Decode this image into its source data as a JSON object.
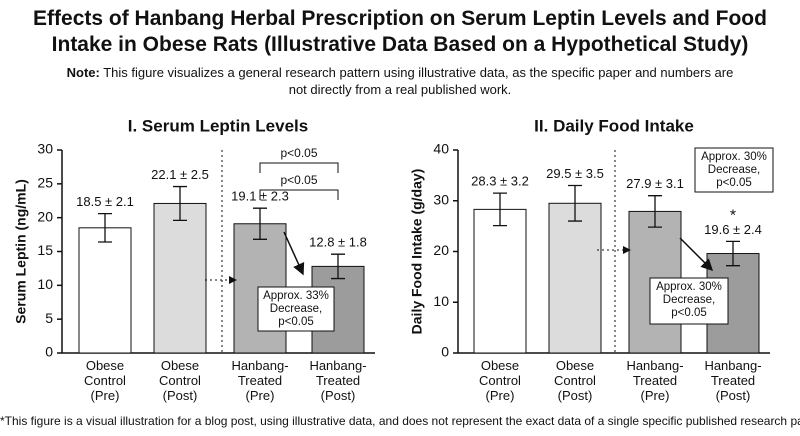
{
  "title": "Effects of Hanbang Herbal Prescription on Serum Leptin Levels and Food Intake in Obese Rats (Illustrative Data Based on a Hypothetical Study)",
  "note_label": "Note:",
  "note": "This figure visualizes a general research pattern using illustrative data, as the specific paper and numbers are not directly from a real published work.",
  "footnote": "*This figure is a visual illustration for a blog post, using illustrative data, and does not represent the exact data of a single specific published research paper.*",
  "chart_data": [
    {
      "type": "bar",
      "title": "I. Serum Leptin Levels",
      "ylabel": "Serum Leptin (ng/mL)",
      "categories": [
        "Obese Control (Pre)",
        "Obese Control (Post)",
        "Hanbang-Treated (Pre)",
        "Hanbang-Treated (Post)"
      ],
      "values": [
        18.5,
        22.1,
        19.1,
        12.8
      ],
      "errors": [
        2.1,
        2.5,
        2.3,
        1.8
      ],
      "value_labels": [
        "18.5 ± 2.1",
        "22.1 ± 2.5",
        "19.1 ± 2.3",
        "12.8 ± 1.8"
      ],
      "colors": [
        "#ffffff",
        "#dcdcdc",
        "#b3b3b3",
        "#9c9c9c"
      ],
      "ylim": [
        0,
        30
      ],
      "yticks": [
        0,
        5,
        10,
        15,
        20,
        25,
        30
      ],
      "brackets": [
        "p<0.05",
        "p<0.05"
      ],
      "boxes": [
        [
          "Approx. 33%",
          "Decrease,",
          "p<0.05"
        ]
      ]
    },
    {
      "type": "bar",
      "title": "II. Daily Food Intake",
      "ylabel": "Daily Food Intake (g/day)",
      "categories": [
        "Obese Control (Pre)",
        "Obese Control (Post)",
        "Hanbang-Treated (Pre)",
        "Hanbang-Treated (Post)"
      ],
      "values": [
        28.3,
        29.5,
        27.9,
        19.6
      ],
      "errors": [
        3.2,
        3.5,
        3.1,
        2.4
      ],
      "value_labels": [
        "28.3 ± 3.2",
        "29.5 ± 3.5",
        "27.9 ± 3.1",
        "19.6 ± 2.4"
      ],
      "colors": [
        "#ffffff",
        "#dcdcdc",
        "#b3b3b3",
        "#9c9c9c"
      ],
      "ylim": [
        0,
        40
      ],
      "yticks": [
        0,
        10,
        20,
        30,
        40
      ],
      "significance": "*",
      "boxes": [
        [
          "Approx. 30%",
          "Decrease,",
          "p<0.05"
        ],
        [
          "Approx. 30%",
          "Decrease,",
          "p<0.05"
        ]
      ]
    }
  ]
}
